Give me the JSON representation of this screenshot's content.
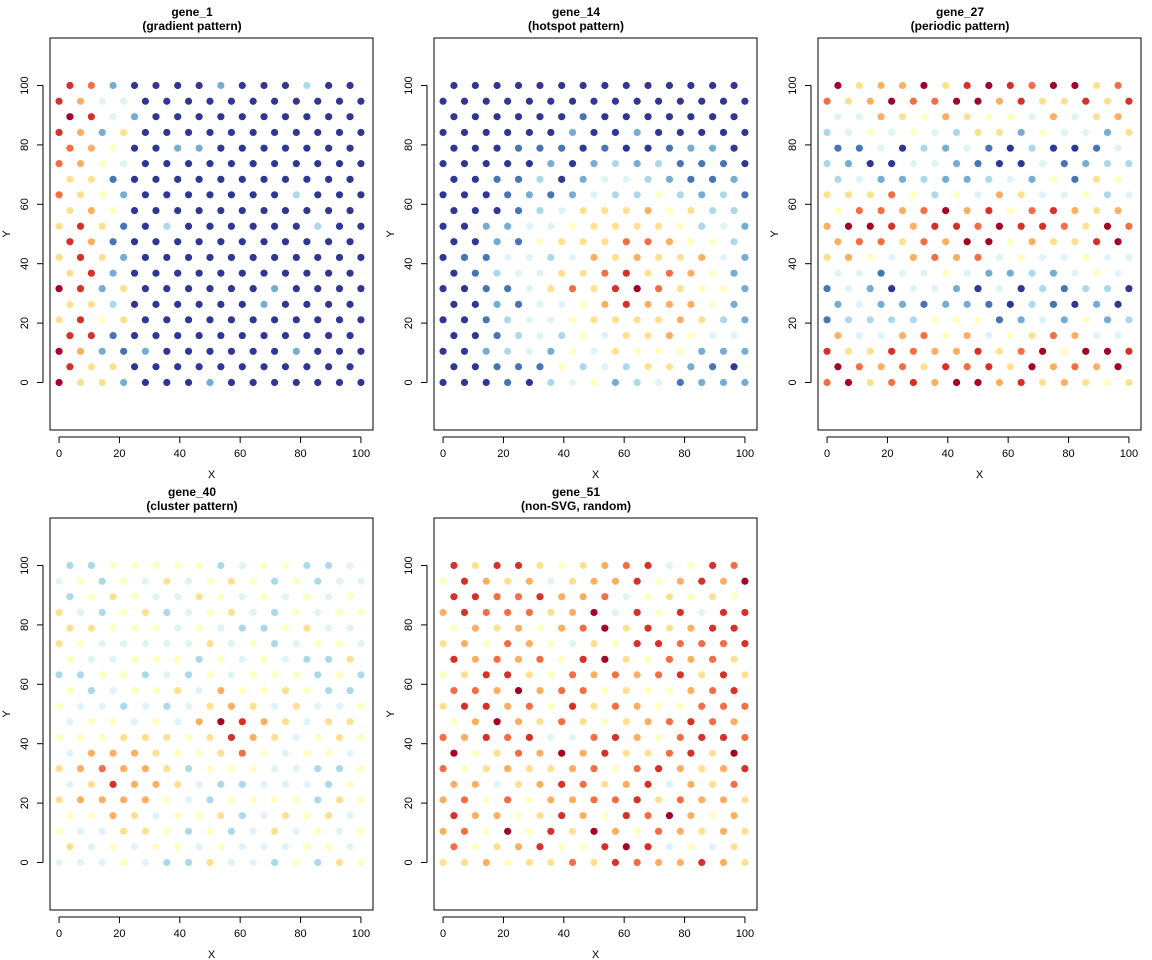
{
  "figure": {
    "background": "#ffffff"
  },
  "palette": [
    "#313695",
    "#4575b4",
    "#74add1",
    "#abd9e9",
    "#e0f3f8",
    "#ffffbf",
    "#fee090",
    "#fdae61",
    "#f46d43",
    "#d73027",
    "#a50026"
  ],
  "chart_data": [
    {
      "type": "scatter",
      "name": "gene_1",
      "title": "gene_1",
      "subtitle": "(gradient pattern)",
      "pattern": "gradient",
      "xlabel": "X",
      "ylabel": "Y",
      "xlim": [
        -3,
        104
      ],
      "ylim": [
        -16,
        116
      ],
      "xticks": [
        0,
        20,
        40,
        60,
        80,
        100
      ],
      "yticks": [
        0,
        20,
        40,
        60,
        80,
        100
      ]
    },
    {
      "type": "scatter",
      "name": "gene_14",
      "title": "gene_14",
      "subtitle": "(hotspot pattern)",
      "pattern": "hotspot",
      "xlabel": "X",
      "ylabel": "Y",
      "xlim": [
        -3,
        104
      ],
      "ylim": [
        -16,
        116
      ],
      "xticks": [
        0,
        20,
        40,
        60,
        80,
        100
      ],
      "yticks": [
        0,
        20,
        40,
        60,
        80,
        100
      ]
    },
    {
      "type": "scatter",
      "name": "gene_27",
      "title": "gene_27",
      "subtitle": "(periodic pattern)",
      "pattern": "periodic",
      "xlabel": "X",
      "ylabel": "Y",
      "xlim": [
        -3,
        104
      ],
      "ylim": [
        -16,
        116
      ],
      "xticks": [
        0,
        20,
        40,
        60,
        80,
        100
      ],
      "yticks": [
        0,
        20,
        40,
        60,
        80,
        100
      ]
    },
    {
      "type": "scatter",
      "name": "gene_40",
      "title": "gene_40",
      "subtitle": "(cluster pattern)",
      "pattern": "cluster",
      "xlabel": "X",
      "ylabel": "Y",
      "xlim": [
        -3,
        104
      ],
      "ylim": [
        -16,
        116
      ],
      "xticks": [
        0,
        20,
        40,
        60,
        80,
        100
      ],
      "yticks": [
        0,
        20,
        40,
        60,
        80,
        100
      ]
    },
    {
      "type": "scatter",
      "name": "gene_51",
      "title": "gene_51",
      "subtitle": "(non-SVG, random)",
      "pattern": "random",
      "xlabel": "X",
      "ylabel": "Y",
      "xlim": [
        -3,
        104
      ],
      "ylim": [
        -16,
        116
      ],
      "xticks": [
        0,
        20,
        40,
        60,
        80,
        100
      ],
      "yticks": [
        0,
        20,
        40,
        60,
        80,
        100
      ]
    }
  ],
  "grid": {
    "rows": [
      0,
      5.3,
      10.5,
      15.8,
      21.1,
      26.3,
      31.6,
      36.8,
      42.1,
      47.4,
      52.6,
      57.9,
      63.2,
      68.4,
      73.7,
      78.9,
      84.2,
      89.5,
      94.7,
      100
    ],
    "x_even_rows": [
      0,
      7.1,
      14.3,
      21.4,
      28.6,
      35.7,
      42.9,
      50,
      57.1,
      64.3,
      71.4,
      78.6,
      85.7,
      92.9,
      100
    ],
    "x_odd_rows": [
      3.6,
      10.7,
      17.9,
      25,
      32.1,
      39.3,
      46.4,
      53.6,
      60.7,
      67.9,
      75,
      82.1,
      89.3,
      96.4
    ]
  }
}
